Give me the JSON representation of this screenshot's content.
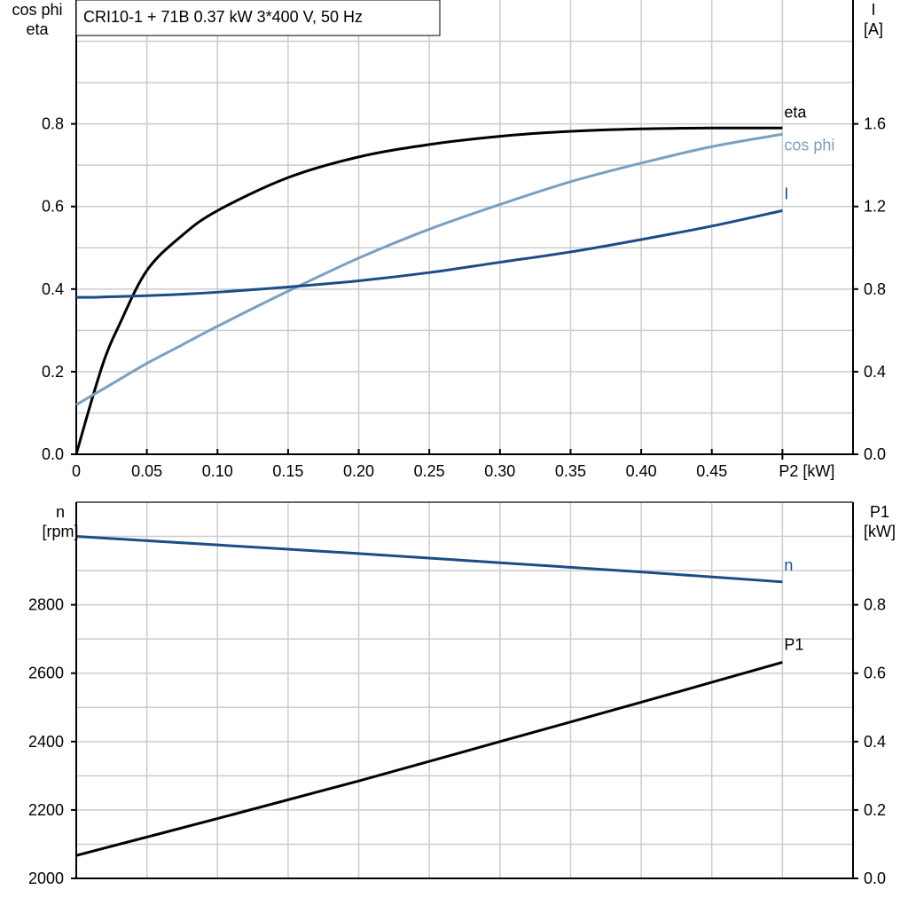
{
  "title": "CRI10-1 + 71B   0.37 kW   3*400 V, 50 Hz",
  "colors": {
    "eta": "#000000",
    "cos_phi": "#7b9fc0",
    "I": "#1a4d86",
    "n": "#1a4d86",
    "P1": "#000000",
    "grid": "#cccccc"
  },
  "chart_data": [
    {
      "type": "line",
      "grid": true,
      "ylabel_left": [
        "cos phi",
        "eta"
      ],
      "ylabel_right": [
        "I",
        "[A]"
      ],
      "xlabel": "P2 [kW]",
      "xlim": [
        0,
        0.55
      ],
      "ylim_left": [
        0,
        1.1
      ],
      "ylim_right": [
        0,
        2.2
      ],
      "x_ticks": [
        "0",
        "0.05",
        "0.10",
        "0.15",
        "0.20",
        "0.25",
        "0.30",
        "0.35",
        "0.40",
        "0.45"
      ],
      "x_tick_values": [
        0,
        0.05,
        0.1,
        0.15,
        0.2,
        0.25,
        0.3,
        0.35,
        0.4,
        0.45
      ],
      "y_ticks_left": [
        "0.0",
        "0.2",
        "0.4",
        "0.6",
        "0.8"
      ],
      "y_ticks_right": [
        "0.0",
        "0.4",
        "0.8",
        "1.2",
        "1.6"
      ],
      "x": [
        0,
        0.01,
        0.02,
        0.03,
        0.05,
        0.075,
        0.1,
        0.15,
        0.2,
        0.25,
        0.3,
        0.35,
        0.4,
        0.45,
        0.5
      ],
      "series": [
        {
          "name": "eta",
          "axis": "left",
          "values": [
            0,
            0.12,
            0.23,
            0.31,
            0.445,
            0.53,
            0.59,
            0.67,
            0.72,
            0.75,
            0.77,
            0.782,
            0.788,
            0.79,
            0.79
          ]
        },
        {
          "name": "cos phi",
          "axis": "left",
          "values": [
            0.12,
            0.14,
            0.16,
            0.18,
            0.22,
            0.265,
            0.31,
            0.395,
            0.475,
            0.545,
            0.605,
            0.66,
            0.705,
            0.745,
            0.775
          ]
        },
        {
          "name": "I",
          "axis": "right",
          "values": [
            0.76,
            0.76,
            0.762,
            0.764,
            0.768,
            0.775,
            0.785,
            0.81,
            0.84,
            0.88,
            0.93,
            0.98,
            1.04,
            1.105,
            1.18
          ]
        }
      ]
    },
    {
      "type": "line",
      "grid": true,
      "ylabel_left": [
        "n",
        "[rpm]"
      ],
      "ylabel_right": [
        "P1",
        "[kW]"
      ],
      "xlim": [
        0,
        0.55
      ],
      "ylim_left": [
        2000,
        3100
      ],
      "ylim_right": [
        0,
        1.1
      ],
      "y_ticks_left": [
        "2000",
        "2200",
        "2400",
        "2600",
        "2800"
      ],
      "y_ticks_right": [
        "0.0",
        "0.2",
        "0.4",
        "0.6",
        "0.8"
      ],
      "x": [
        0,
        0.1,
        0.2,
        0.3,
        0.4,
        0.5
      ],
      "series": [
        {
          "name": "n",
          "axis": "left",
          "values": [
            3000,
            2975,
            2950,
            2923,
            2896,
            2867
          ]
        },
        {
          "name": "P1",
          "axis": "right",
          "values": [
            0.067,
            0.175,
            0.285,
            0.4,
            0.515,
            0.632
          ]
        }
      ]
    }
  ]
}
